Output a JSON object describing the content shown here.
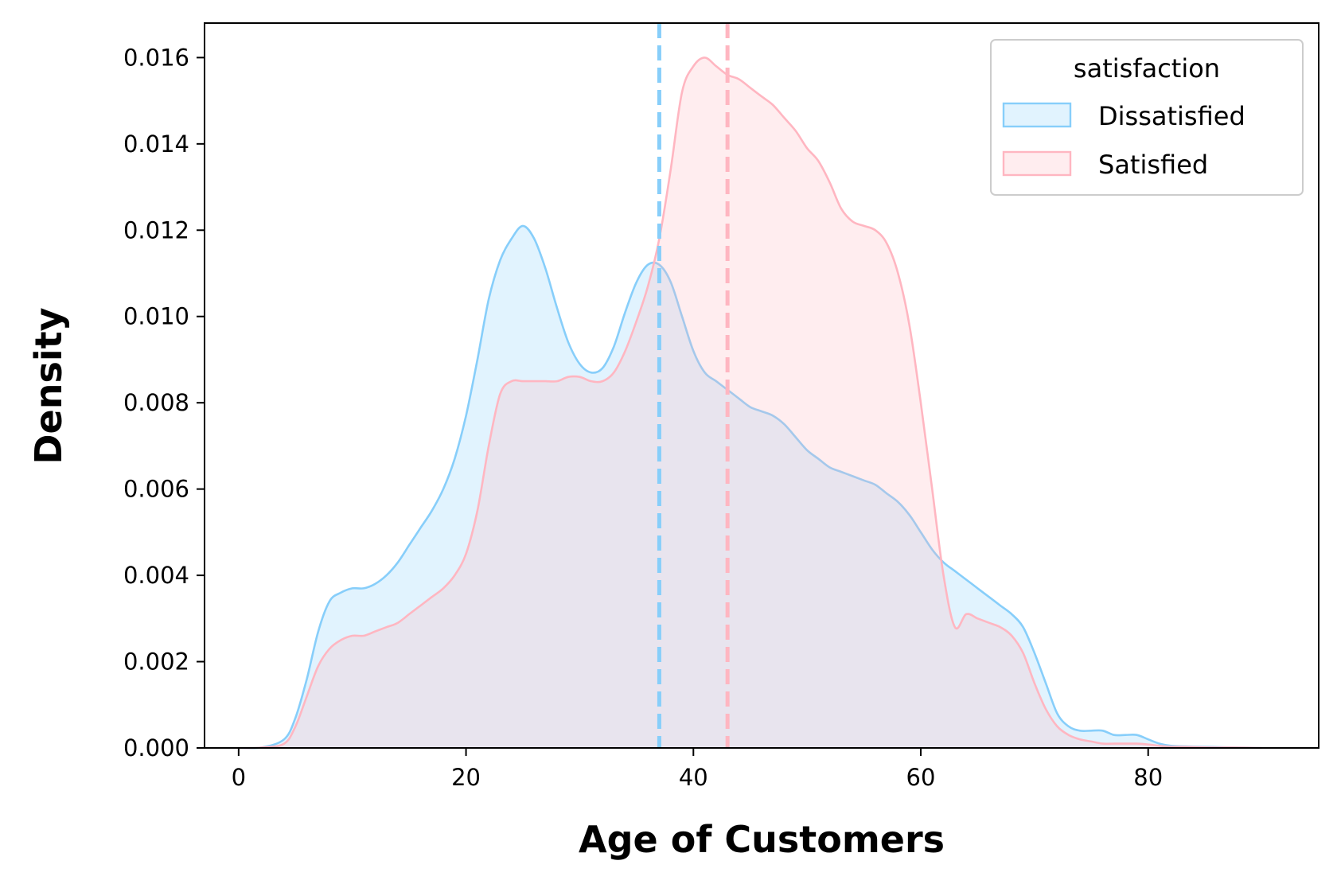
{
  "chart_data": {
    "type": "area",
    "xlabel": "Age of Customers",
    "ylabel": "Density",
    "xlim": [
      -3,
      95
    ],
    "ylim": [
      0,
      0.0168
    ],
    "xticks": [
      0,
      20,
      40,
      60,
      80
    ],
    "xtick_labels": [
      "0",
      "20",
      "40",
      "60",
      "80"
    ],
    "yticks": [
      0,
      0.002,
      0.004,
      0.006,
      0.008,
      0.01,
      0.012,
      0.014,
      0.016
    ],
    "ytick_labels": [
      "0.000",
      "0.002",
      "0.004",
      "0.006",
      "0.008",
      "0.010",
      "0.012",
      "0.014",
      "0.016"
    ],
    "grid": false,
    "legend": {
      "title": "satisfaction",
      "placement": "top-right"
    },
    "series": [
      {
        "name": "Dissatisfied",
        "color": "#87CEFA",
        "mean_line_x": 37,
        "x": [
          0,
          2,
          4,
          5,
          6,
          7,
          8,
          9,
          10,
          11,
          12,
          13,
          14,
          15,
          16,
          17,
          18,
          19,
          20,
          21,
          22,
          23,
          24,
          25,
          26,
          27,
          28,
          29,
          30,
          31,
          32,
          33,
          34,
          35,
          36,
          37,
          38,
          39,
          40,
          41,
          42,
          43,
          44,
          45,
          46,
          47,
          48,
          49,
          50,
          51,
          52,
          53,
          54,
          55,
          56,
          57,
          58,
          59,
          60,
          61,
          62,
          63,
          64,
          65,
          66,
          67,
          68,
          69,
          70,
          71,
          72,
          73,
          74,
          75,
          76,
          77,
          78,
          79,
          80,
          81,
          82,
          84,
          86,
          88,
          90
        ],
        "y": [
          0.0,
          1e-05,
          0.0002,
          0.0007,
          0.0016,
          0.0027,
          0.0034,
          0.0036,
          0.0037,
          0.0037,
          0.0038,
          0.004,
          0.0043,
          0.0047,
          0.0051,
          0.0055,
          0.006,
          0.0067,
          0.0077,
          0.009,
          0.0104,
          0.0113,
          0.0118,
          0.0121,
          0.0118,
          0.0111,
          0.0102,
          0.0094,
          0.0089,
          0.0087,
          0.0088,
          0.0093,
          0.0101,
          0.0108,
          0.0112,
          0.0112,
          0.0108,
          0.01,
          0.0092,
          0.0087,
          0.0085,
          0.0083,
          0.0081,
          0.0079,
          0.0078,
          0.0077,
          0.0075,
          0.0072,
          0.0069,
          0.0067,
          0.0065,
          0.0064,
          0.0063,
          0.0062,
          0.0061,
          0.0059,
          0.0057,
          0.0054,
          0.005,
          0.0046,
          0.0043,
          0.0041,
          0.0039,
          0.0037,
          0.0035,
          0.0033,
          0.0031,
          0.0028,
          0.0022,
          0.0015,
          0.0008,
          0.0005,
          0.0004,
          0.0004,
          0.0004,
          0.0003,
          0.0003,
          0.0003,
          0.0002,
          0.0001,
          5e-05,
          3e-05,
          2e-05,
          1e-05,
          0.0
        ]
      },
      {
        "name": "Satisfied",
        "color": "#FFB6C1",
        "mean_line_x": 43,
        "x": [
          0,
          2,
          4,
          5,
          6,
          7,
          8,
          9,
          10,
          11,
          12,
          13,
          14,
          15,
          16,
          17,
          18,
          19,
          20,
          21,
          22,
          23,
          24,
          25,
          26,
          27,
          28,
          29,
          30,
          31,
          32,
          33,
          34,
          35,
          36,
          37,
          38,
          39,
          40,
          41,
          42,
          43,
          44,
          45,
          46,
          47,
          48,
          49,
          50,
          51,
          52,
          53,
          54,
          55,
          56,
          57,
          58,
          59,
          60,
          61,
          62,
          63,
          64,
          65,
          66,
          67,
          68,
          69,
          70,
          71,
          72,
          73,
          74,
          75,
          76,
          77,
          78,
          79,
          80,
          81,
          82,
          84,
          86,
          88,
          90
        ],
        "y": [
          0.0,
          1e-05,
          0.0001,
          0.0005,
          0.0012,
          0.0019,
          0.0023,
          0.0025,
          0.0026,
          0.0026,
          0.0027,
          0.0028,
          0.0029,
          0.0031,
          0.0033,
          0.0035,
          0.0037,
          0.004,
          0.0045,
          0.0055,
          0.007,
          0.0082,
          0.0085,
          0.0085,
          0.0085,
          0.0085,
          0.0085,
          0.0086,
          0.0086,
          0.0085,
          0.0085,
          0.0087,
          0.0092,
          0.0099,
          0.0107,
          0.0118,
          0.0134,
          0.0152,
          0.0158,
          0.016,
          0.0158,
          0.0156,
          0.0155,
          0.0153,
          0.0151,
          0.0149,
          0.0146,
          0.0143,
          0.0139,
          0.0136,
          0.0131,
          0.0125,
          0.0122,
          0.0121,
          0.012,
          0.0117,
          0.011,
          0.0098,
          0.008,
          0.006,
          0.004,
          0.0028,
          0.0031,
          0.003,
          0.0029,
          0.0028,
          0.0026,
          0.0022,
          0.0015,
          0.0009,
          0.0005,
          0.0003,
          0.0002,
          0.00015,
          0.0001,
          0.0001,
          0.0001,
          0.0001,
          8e-05,
          5e-05,
          3e-05,
          2e-05,
          1e-05,
          1e-05,
          0.0
        ]
      }
    ]
  }
}
